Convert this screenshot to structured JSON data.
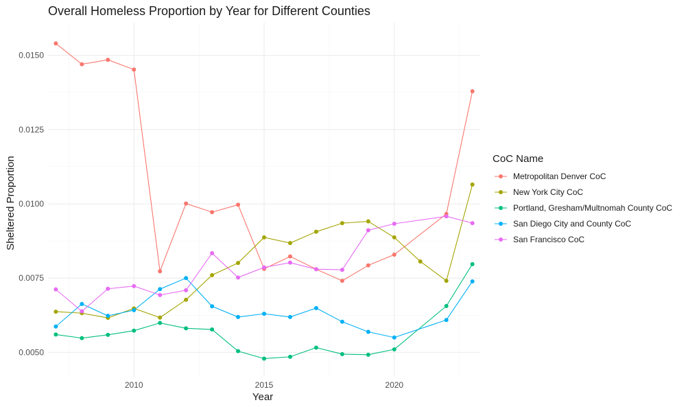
{
  "chart_data": {
    "type": "line",
    "title": "Overall Homeless Proportion by Year for Different Counties",
    "xlabel": "Year",
    "ylabel": "Sheltered Proportion",
    "xlim": [
      2006.7,
      2023.3
    ],
    "ylim": [
      0.0042,
      0.0161
    ],
    "x_ticks": [
      2010,
      2015,
      2020
    ],
    "y_ticks": [
      0.005,
      0.0075,
      0.01,
      0.0125,
      0.015
    ],
    "y_tick_labels": [
      "0.0050",
      "0.0075",
      "0.0100",
      "0.0125",
      "0.0150"
    ],
    "grid": true,
    "legend": {
      "title": "CoC Name",
      "position": "right"
    },
    "series": [
      {
        "name": "Metropolitan Denver CoC",
        "color": "#F8766D",
        "x": [
          2007,
          2008,
          2009,
          2010,
          2011,
          2012,
          2013,
          2014,
          2015,
          2016,
          2017,
          2018,
          2019,
          2020,
          2022,
          2023
        ],
        "y": [
          0.0154,
          0.0147,
          0.01485,
          0.01452,
          0.00773,
          0.01001,
          0.00972,
          0.00997,
          0.00781,
          0.00823,
          0.0078,
          0.00741,
          0.00793,
          0.00829,
          0.00966,
          0.01379
        ]
      },
      {
        "name": "New York City CoC",
        "color": "#A3A500",
        "x": [
          2007,
          2008,
          2009,
          2010,
          2011,
          2012,
          2013,
          2014,
          2015,
          2016,
          2017,
          2018,
          2019,
          2020,
          2021,
          2022,
          2023
        ],
        "y": [
          0.00637,
          0.00632,
          0.00616,
          0.00648,
          0.00617,
          0.00677,
          0.0076,
          0.00801,
          0.00887,
          0.00868,
          0.00906,
          0.00935,
          0.00941,
          0.00887,
          0.00806,
          0.00741,
          0.01065
        ]
      },
      {
        "name": "Portland, Gresham/Multnomah County CoC",
        "color": "#00BF7D",
        "x": [
          2007,
          2008,
          2009,
          2010,
          2011,
          2012,
          2013,
          2014,
          2015,
          2016,
          2017,
          2018,
          2019,
          2020,
          2022,
          2023
        ],
        "y": [
          0.0056,
          0.00548,
          0.00559,
          0.00573,
          0.00599,
          0.00581,
          0.00577,
          0.00504,
          0.00479,
          0.00485,
          0.00516,
          0.00494,
          0.00492,
          0.0051,
          0.00656,
          0.00797
        ]
      },
      {
        "name": "San Diego City and County CoC",
        "color": "#00B0F6",
        "x": [
          2007,
          2008,
          2009,
          2010,
          2011,
          2012,
          2013,
          2014,
          2015,
          2016,
          2017,
          2018,
          2019,
          2020,
          2022,
          2023
        ],
        "y": [
          0.00587,
          0.00663,
          0.00623,
          0.00642,
          0.00713,
          0.0075,
          0.00655,
          0.00619,
          0.0063,
          0.00619,
          0.00649,
          0.00603,
          0.00569,
          0.0055,
          0.00609,
          0.00739
        ]
      },
      {
        "name": "San Francisco CoC",
        "color": "#E76BF3",
        "x": [
          2007,
          2008,
          2009,
          2010,
          2011,
          2012,
          2013,
          2014,
          2015,
          2016,
          2017,
          2018,
          2019,
          2020,
          2022,
          2023
        ],
        "y": [
          0.00712,
          0.00638,
          0.00714,
          0.00723,
          0.00693,
          0.00709,
          0.00834,
          0.00752,
          0.00786,
          0.00802,
          0.0078,
          0.00778,
          0.00911,
          0.00933,
          0.00958,
          0.00935
        ]
      }
    ]
  }
}
